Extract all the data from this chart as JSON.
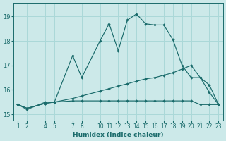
{
  "xlabel": "Humidex (Indice chaleur)",
  "bg_color": "#cce9e9",
  "grid_color": "#aad8d8",
  "line_color": "#1a6b6b",
  "xlim": [
    0.5,
    23.5
  ],
  "ylim": [
    14.75,
    19.55
  ],
  "xticks": [
    1,
    2,
    4,
    5,
    7,
    8,
    10,
    11,
    12,
    13,
    14,
    15,
    16,
    17,
    18,
    19,
    20,
    21,
    22,
    23
  ],
  "yticks": [
    15,
    16,
    17,
    18,
    19
  ],
  "curve_jagged_x": [
    1,
    2,
    4,
    5,
    7,
    8,
    10,
    11,
    12,
    13,
    14,
    15,
    16,
    17,
    18,
    19,
    20,
    21,
    22,
    23
  ],
  "curve_jagged_y": [
    15.4,
    15.2,
    15.5,
    15.5,
    17.4,
    16.5,
    18.0,
    18.7,
    17.6,
    18.85,
    19.1,
    18.7,
    18.65,
    18.65,
    18.05,
    17.0,
    16.5,
    16.5,
    15.9,
    15.4
  ],
  "curve_diag_x": [
    1,
    2,
    4,
    5,
    7,
    8,
    10,
    11,
    12,
    13,
    14,
    15,
    16,
    17,
    18,
    19,
    20,
    21,
    22,
    23
  ],
  "curve_diag_y": [
    15.4,
    15.25,
    15.45,
    15.5,
    15.65,
    15.75,
    15.95,
    16.05,
    16.15,
    16.25,
    16.35,
    16.45,
    16.5,
    16.6,
    16.7,
    16.85,
    17.0,
    16.5,
    16.2,
    15.4
  ],
  "curve_flat_x": [
    1,
    2,
    4,
    5,
    7,
    8,
    10,
    11,
    12,
    13,
    14,
    15,
    16,
    17,
    18,
    19,
    20,
    21,
    22,
    23
  ],
  "curve_flat_y": [
    15.4,
    15.25,
    15.45,
    15.5,
    15.55,
    15.55,
    15.55,
    15.55,
    15.55,
    15.55,
    15.55,
    15.55,
    15.55,
    15.55,
    15.55,
    15.55,
    15.55,
    15.4,
    15.4,
    15.4
  ]
}
